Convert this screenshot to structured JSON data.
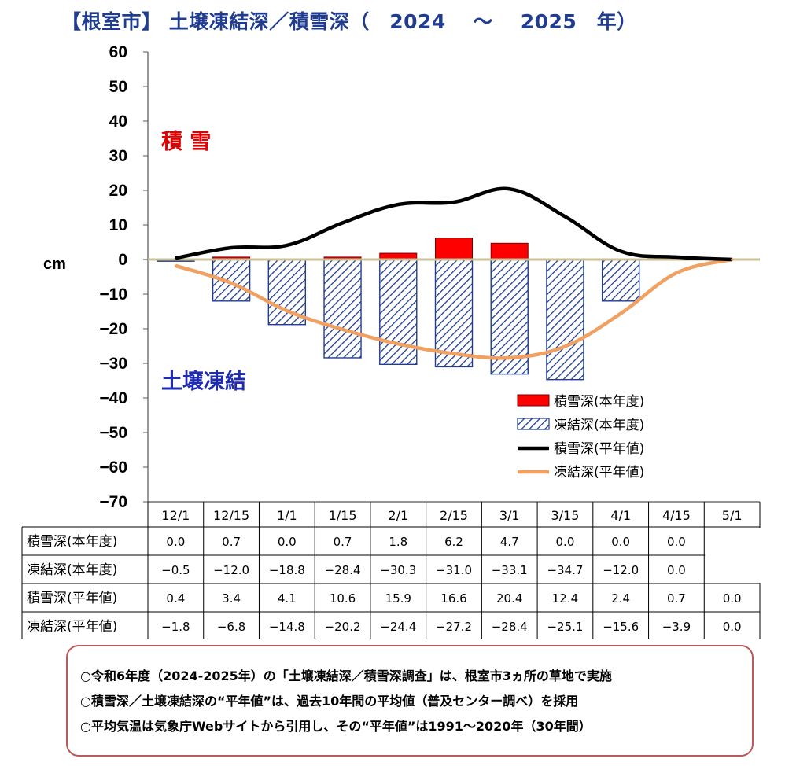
{
  "title": "【根室市】 土壌凍結深／積雪深（　2024　 ～　 2025　年）",
  "unit_label": "cm",
  "annotations": {
    "snow": "積 雪",
    "frost": "土壌凍結"
  },
  "colors": {
    "title": "#1f3c91",
    "snow_bar": "#ff0000",
    "frost_hatch": "#1f3c91",
    "snow_avg_line": "#000000",
    "frost_avg_line": "#f0a060",
    "zero_line": "#c8c09a",
    "snow_annotation": "#e00000",
    "frost_annotation": "#1f2bb0"
  },
  "chart_data": {
    "type": "bar",
    "title": "【根室市】 土壌凍結深／積雪深（　2024　 ～　 2025　年）",
    "ylabel": "cm",
    "ylim": [
      -70,
      60
    ],
    "yticks": [
      "60",
      "50",
      "40",
      "30",
      "20",
      "10",
      "0",
      "-10",
      "-20",
      "-30",
      "-40",
      "-50",
      "-60",
      "-70"
    ],
    "categories": [
      "12/1",
      "12/15",
      "1/1",
      "1/15",
      "2/1",
      "2/15",
      "3/1",
      "3/15",
      "4/1",
      "4/15",
      "5/1"
    ],
    "series": [
      {
        "name": "積雪深(本年度)",
        "kind": "bar",
        "legend": "積雪深(本年度)",
        "values": [
          0.0,
          0.7,
          0.0,
          0.7,
          1.8,
          6.2,
          4.7,
          0.0,
          0.0,
          0.0,
          null
        ],
        "labels": [
          "0.0",
          "0.7",
          "0.0",
          "0.7",
          "1.8",
          "6.2",
          "4.7",
          "0.0",
          "0.0",
          "0.0",
          ""
        ]
      },
      {
        "name": "凍結深(本年度)",
        "kind": "bar-hatched",
        "legend": "凍結深(本年度)",
        "values": [
          -0.5,
          -12.0,
          -18.8,
          -28.4,
          -30.3,
          -31.0,
          -33.1,
          -34.7,
          -12.0,
          0.0,
          null
        ],
        "labels": [
          "−0.5",
          "−12.0",
          "−18.8",
          "−28.4",
          "−30.3",
          "−31.0",
          "−33.1",
          "−34.7",
          "−12.0",
          "0.0",
          ""
        ]
      },
      {
        "name": "積雪深(平年値)",
        "kind": "line",
        "legend": "積雪深(平年値)",
        "values": [
          0.4,
          3.4,
          4.1,
          10.6,
          15.9,
          16.6,
          20.4,
          12.4,
          2.4,
          0.7,
          0.0
        ],
        "labels": [
          "0.4",
          "3.4",
          "4.1",
          "10.6",
          "15.9",
          "16.6",
          "20.4",
          "12.4",
          "2.4",
          "0.7",
          "0.0"
        ]
      },
      {
        "name": "凍結深(平年値)",
        "kind": "line",
        "legend": "凍結深(平年値)",
        "values": [
          -1.8,
          -6.8,
          -14.8,
          -20.2,
          -24.4,
          -27.2,
          -28.4,
          -25.1,
          -15.6,
          -3.9,
          0.0
        ],
        "labels": [
          "−1.8",
          "−6.8",
          "−14.8",
          "−20.2",
          "−24.4",
          "−27.2",
          "−28.4",
          "−25.1",
          "−15.6",
          "−3.9",
          "0.0"
        ]
      }
    ],
    "legend_position": "bottom-right"
  },
  "notes": [
    "○令和6年度（2024-2025年）の「土壌凍結深／積雪深調査」は、根室市3ヵ所の草地で実施",
    "○積雪深／土壌凍結深の“平年値”は、過去10年間の平均値（普及センター調べ）を採用",
    "○平均気温は気象庁Webサイトから引用し、その“平年値”は1991～2020年（30年間）"
  ]
}
